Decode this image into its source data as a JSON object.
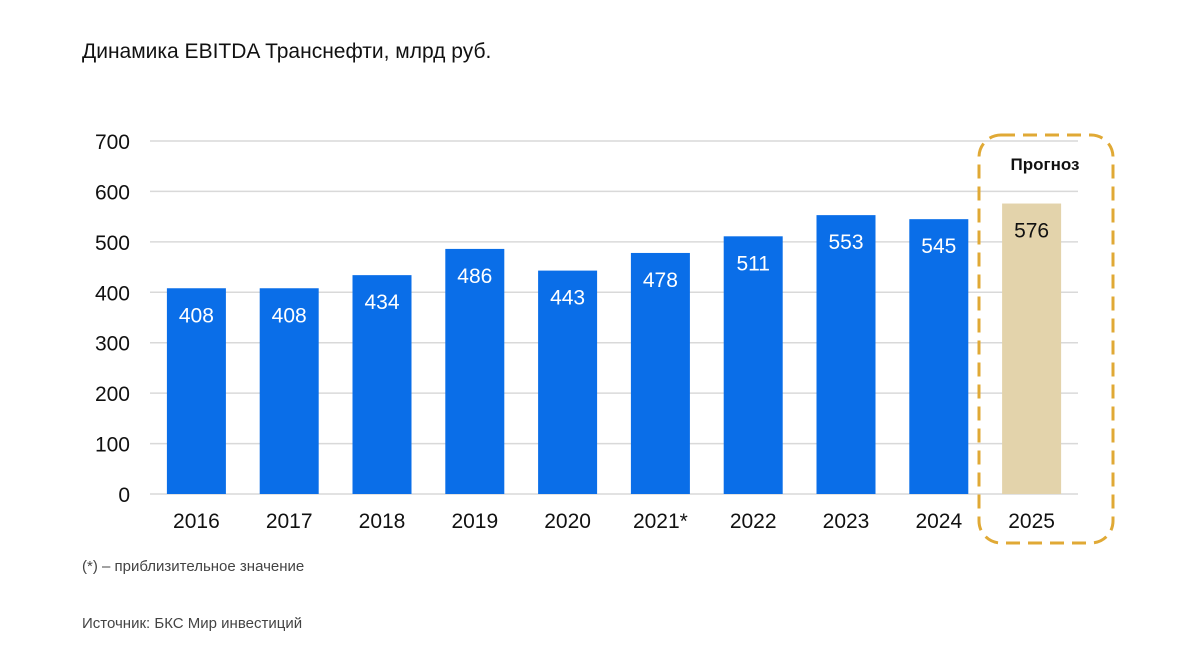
{
  "title": "Динамика EBITDA Транснефти, млрд руб.",
  "footnote": "(*) – приблизительное значение",
  "source": "Источник: БКС Мир инвестиций",
  "forecast_label": "Прогноз",
  "colors": {
    "actual": "#0a6ee8",
    "forecast": "#e3d3ab",
    "forecast_frame": "#e0a935",
    "grid": "#d9d9d9"
  },
  "chart_data": {
    "type": "bar",
    "title": "Динамика EBITDA Транснефти, млрд руб.",
    "xlabel": "",
    "ylabel": "",
    "categories": [
      "2016",
      "2017",
      "2018",
      "2019",
      "2020",
      "2021*",
      "2022",
      "2023",
      "2024",
      "2025"
    ],
    "values": [
      408,
      408,
      434,
      486,
      443,
      478,
      511,
      553,
      545,
      576
    ],
    "value_labels": [
      "408",
      "408",
      "434",
      "486",
      "443",
      "478",
      "511",
      "553",
      "545",
      "576"
    ],
    "forecast_categories": [
      "2025"
    ],
    "ylim": [
      0,
      700
    ],
    "yticks": [
      0,
      100,
      200,
      300,
      400,
      500,
      600,
      700
    ],
    "grid": true,
    "legend": "none"
  }
}
